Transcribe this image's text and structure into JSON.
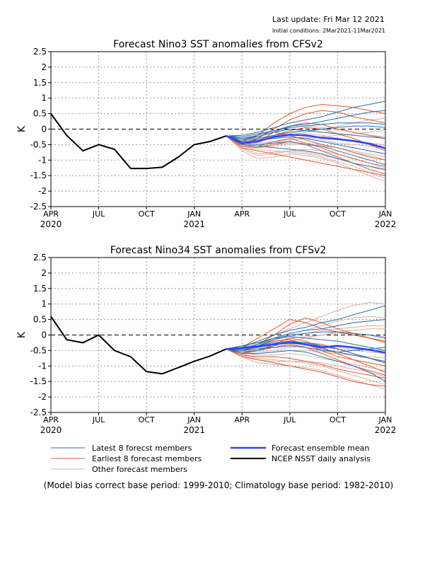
{
  "header": {
    "last_update": "Last update: Fri Mar 12 2021",
    "initial_conditions": "Initial conditions: 2Mar2021-11Mar2021"
  },
  "colors": {
    "latest": "#1f6fb4",
    "earliest": "#e8542a",
    "other": "#d8b0a4",
    "mean": "#2a44ff",
    "observed": "#000000",
    "grid": "#9a9a9a"
  },
  "legend": {
    "latest": "Latest 8 forecst members",
    "earliest": "Earliest 8 forecast members",
    "other": "Other forecast members",
    "mean": "Forecast ensemble mean",
    "observed": "NCEP NSST daily analysis"
  },
  "footnote": "(Model bias correct base period: 1999-2010; Climatology base period: 1982-2010)",
  "chart_data": [
    {
      "type": "line",
      "title": "Forecast Nino3 SST anomalies from CFSv2",
      "ylabel": "K",
      "ylim": [
        -2.5,
        2.5
      ],
      "yticks": [
        "2.5",
        "2",
        "1.5",
        "1",
        "0.5",
        "0",
        "-0.5",
        "-1",
        "-1.5",
        "-2",
        "-2.5"
      ],
      "xticks": [
        "APR",
        "JUL",
        "OCT",
        "JAN",
        "APR",
        "JUL",
        "OCT",
        "JAN"
      ],
      "year_labels": [
        {
          "text": "2020",
          "at": 0
        },
        {
          "text": "2021",
          "at": 3
        },
        {
          "text": "2022",
          "at": 7
        }
      ],
      "grid": true,
      "zero_line": true,
      "observed": {
        "x": [
          0,
          0.33,
          0.67,
          1,
          1.33,
          1.67,
          2,
          2.33,
          2.67,
          3,
          3.33,
          3.67
        ],
        "y": [
          0.5,
          -0.2,
          -0.7,
          -0.5,
          -0.65,
          -1.27,
          -1.27,
          -1.23,
          -0.9,
          -0.5,
          -0.4,
          -0.22
        ]
      },
      "mean": {
        "x": [
          3.67,
          4,
          4.33,
          4.67,
          5,
          5.33,
          5.67,
          6,
          6.33,
          6.67,
          7
        ],
        "y": [
          -0.22,
          -0.45,
          -0.4,
          -0.25,
          -0.18,
          -0.2,
          -0.28,
          -0.32,
          -0.38,
          -0.47,
          -0.62
        ]
      },
      "latest": [
        [
          -0.22,
          -0.2,
          -0.1,
          0.05,
          0.2,
          0.3,
          0.4,
          0.55,
          0.7,
          0.8,
          0.9
        ],
        [
          -0.22,
          -0.25,
          -0.15,
          -0.05,
          0.1,
          0.15,
          0.25,
          0.35,
          0.45,
          0.55,
          0.6
        ],
        [
          -0.22,
          -0.3,
          -0.2,
          -0.05,
          0.05,
          0.1,
          0.15,
          0.2,
          0.2,
          0.2,
          0.15
        ],
        [
          -0.22,
          -0.35,
          -0.3,
          -0.2,
          -0.1,
          -0.05,
          0.0,
          0.05,
          0.1,
          0.1,
          0.05
        ],
        [
          -0.22,
          -0.4,
          -0.35,
          -0.3,
          -0.25,
          -0.3,
          -0.4,
          -0.5,
          -0.6,
          -0.7,
          -0.8
        ],
        [
          -0.22,
          -0.45,
          -0.5,
          -0.45,
          -0.4,
          -0.5,
          -0.55,
          -0.7,
          -0.85,
          -1.0,
          -1.15
        ],
        [
          -0.22,
          -0.5,
          -0.55,
          -0.6,
          -0.65,
          -0.7,
          -0.8,
          -0.95,
          -1.1,
          -1.2,
          -1.3
        ],
        [
          -0.22,
          -0.3,
          -0.25,
          -0.1,
          0.0,
          -0.05,
          -0.1,
          -0.15,
          -0.2,
          -0.25,
          -0.3
        ]
      ],
      "earliest": [
        [
          -0.22,
          -0.4,
          -0.2,
          0.2,
          0.5,
          0.7,
          0.8,
          0.75,
          0.7,
          0.6,
          0.5
        ],
        [
          -0.22,
          -0.5,
          -0.3,
          0.0,
          0.3,
          0.5,
          0.6,
          0.55,
          0.4,
          0.3,
          0.2
        ],
        [
          -0.22,
          -0.45,
          -0.4,
          -0.1,
          0.1,
          0.2,
          0.15,
          0.0,
          -0.1,
          -0.2,
          -0.3
        ],
        [
          -0.22,
          -0.55,
          -0.6,
          -0.5,
          -0.4,
          -0.5,
          -0.7,
          -0.9,
          -1.1,
          -1.3,
          -1.45
        ],
        [
          -0.22,
          -0.6,
          -0.7,
          -0.8,
          -0.9,
          -1.0,
          -1.1,
          -1.2,
          -1.3,
          -1.4,
          -1.5
        ],
        [
          -0.22,
          -0.5,
          -0.55,
          -0.4,
          -0.3,
          -0.45,
          -0.6,
          -0.8,
          -0.95,
          -1.1,
          -1.2
        ],
        [
          -0.22,
          -0.35,
          -0.25,
          -0.1,
          -0.2,
          -0.35,
          -0.5,
          -0.6,
          -0.75,
          -0.9,
          -1.0
        ],
        [
          -0.22,
          -0.45,
          -0.35,
          -0.2,
          -0.05,
          0.05,
          0.0,
          -0.15,
          -0.3,
          -0.5,
          -0.7
        ]
      ],
      "other": [
        [
          -0.22,
          -0.3,
          -0.35,
          -0.3,
          -0.2,
          -0.1,
          0.0,
          0.1,
          0.2,
          0.3,
          0.35
        ],
        [
          -0.22,
          -0.4,
          -0.45,
          -0.4,
          -0.35,
          -0.3,
          -0.25,
          -0.2,
          -0.15,
          -0.1,
          -0.05
        ],
        [
          -0.22,
          -0.5,
          -0.6,
          -0.55,
          -0.5,
          -0.5,
          -0.55,
          -0.6,
          -0.7,
          -0.8,
          -0.9
        ],
        [
          -0.22,
          -0.6,
          -0.8,
          -0.75,
          -0.7,
          -0.75,
          -0.85,
          -0.95,
          -1.1,
          -1.2,
          -1.35
        ],
        [
          -0.22,
          -0.7,
          -0.95,
          -0.9,
          -0.8,
          -0.85,
          -0.95,
          -1.1,
          -1.3,
          -1.5,
          -1.7
        ],
        [
          -0.22,
          -0.45,
          -0.5,
          -0.45,
          -0.3,
          -0.25,
          -0.35,
          -0.45,
          -0.5,
          -0.55,
          -0.6
        ],
        [
          -0.22,
          -0.35,
          -0.3,
          -0.2,
          -0.15,
          -0.2,
          -0.3,
          -0.35,
          -0.4,
          -0.45,
          -0.5
        ],
        [
          -0.22,
          -0.55,
          -0.65,
          -0.7,
          -0.75,
          -0.8,
          -0.9,
          -1.05,
          -1.2,
          -1.4,
          -1.6
        ],
        [
          -0.22,
          -0.4,
          -0.35,
          -0.2,
          -0.1,
          -0.15,
          -0.2,
          -0.3,
          -0.4,
          -0.5,
          -0.55
        ],
        [
          -0.22,
          -0.5,
          -0.55,
          -0.5,
          -0.45,
          -0.45,
          -0.5,
          -0.6,
          -0.75,
          -0.85,
          -1.0
        ],
        [
          -0.22,
          -0.65,
          -0.85,
          -0.8,
          -0.7,
          -0.65,
          -0.7,
          -0.8,
          -0.95,
          -1.1,
          -1.25
        ],
        [
          -0.22,
          -0.3,
          -0.2,
          -0.05,
          0.05,
          0.1,
          0.05,
          0.0,
          -0.1,
          -0.2,
          -0.25
        ]
      ]
    },
    {
      "type": "line",
      "title": "Forecast Nino34 SST anomalies from CFSv2",
      "ylabel": "K",
      "ylim": [
        -2.5,
        2.5
      ],
      "yticks": [
        "2.5",
        "2",
        "1.5",
        "1",
        "0.5",
        "0",
        "-0.5",
        "-1",
        "-1.5",
        "-2",
        "-2.5"
      ],
      "xticks": [
        "APR",
        "JUL",
        "OCT",
        "JAN",
        "APR",
        "JUL",
        "OCT",
        "JAN"
      ],
      "year_labels": [
        {
          "text": "2020",
          "at": 0
        },
        {
          "text": "2021",
          "at": 3
        },
        {
          "text": "2022",
          "at": 7
        }
      ],
      "grid": true,
      "zero_line": true,
      "observed": {
        "x": [
          0,
          0.33,
          0.67,
          1,
          1.33,
          1.67,
          2,
          2.33,
          2.67,
          3,
          3.33,
          3.67
        ],
        "y": [
          0.6,
          -0.15,
          -0.25,
          0.0,
          -0.5,
          -0.7,
          -1.18,
          -1.25,
          -1.05,
          -0.85,
          -0.68,
          -0.45
        ]
      },
      "mean": {
        "x": [
          3.67,
          4,
          4.33,
          4.67,
          5,
          5.33,
          5.67,
          6,
          6.33,
          6.67,
          7
        ],
        "y": [
          -0.45,
          -0.42,
          -0.38,
          -0.3,
          -0.25,
          -0.3,
          -0.4,
          -0.35,
          -0.4,
          -0.48,
          -0.57
        ]
      },
      "latest": [
        [
          -0.45,
          -0.4,
          -0.2,
          0.0,
          0.15,
          0.25,
          0.4,
          0.5,
          0.65,
          0.8,
          0.95
        ],
        [
          -0.45,
          -0.45,
          -0.3,
          -0.1,
          0.05,
          0.15,
          0.2,
          0.3,
          0.4,
          0.45,
          0.5
        ],
        [
          -0.45,
          -0.5,
          -0.35,
          -0.15,
          0.0,
          0.05,
          0.1,
          0.1,
          0.05,
          0.0,
          -0.1
        ],
        [
          -0.45,
          -0.55,
          -0.5,
          -0.35,
          -0.2,
          -0.25,
          -0.35,
          -0.45,
          -0.6,
          -0.75,
          -0.9
        ],
        [
          -0.45,
          -0.6,
          -0.6,
          -0.55,
          -0.5,
          -0.55,
          -0.7,
          -0.85,
          -1.0,
          -1.2,
          -1.5
        ],
        [
          -0.45,
          -0.4,
          -0.35,
          -0.25,
          -0.2,
          -0.3,
          -0.45,
          -0.55,
          -0.65,
          -0.75,
          -0.85
        ],
        [
          -0.45,
          -0.5,
          -0.45,
          -0.4,
          -0.35,
          -0.4,
          -0.5,
          -0.55,
          -0.5,
          -0.45,
          -0.4
        ],
        [
          -0.45,
          -0.35,
          -0.25,
          -0.1,
          -0.05,
          -0.1,
          -0.15,
          -0.2,
          -0.3,
          -0.4,
          -0.5
        ]
      ],
      "earliest": [
        [
          -0.45,
          -0.4,
          -0.1,
          0.2,
          0.5,
          0.4,
          0.2,
          0.1,
          0.0,
          -0.1,
          -0.2
        ],
        [
          -0.45,
          -0.5,
          -0.3,
          0.0,
          0.35,
          0.55,
          0.4,
          0.2,
          0.05,
          -0.1,
          -0.25
        ],
        [
          -0.45,
          -0.6,
          -0.5,
          -0.3,
          -0.1,
          -0.2,
          -0.4,
          -0.6,
          -0.8,
          -1.0,
          -1.2
        ],
        [
          -0.45,
          -0.65,
          -0.7,
          -0.7,
          -0.75,
          -0.85,
          -0.95,
          -1.1,
          -1.2,
          -1.3,
          -1.4
        ],
        [
          -0.45,
          -0.7,
          -0.8,
          -0.9,
          -1.0,
          -1.1,
          -1.2,
          -1.35,
          -1.5,
          -1.6,
          -1.65
        ],
        [
          -0.45,
          -0.55,
          -0.5,
          -0.4,
          -0.3,
          -0.4,
          -0.6,
          -0.8,
          -1.0,
          -1.15,
          -1.3
        ],
        [
          -0.45,
          -0.45,
          -0.35,
          -0.2,
          -0.15,
          -0.3,
          -0.5,
          -0.7,
          -0.8,
          -0.9,
          -1.0
        ],
        [
          -0.45,
          -0.5,
          -0.4,
          -0.3,
          -0.2,
          -0.25,
          -0.3,
          -0.45,
          -0.6,
          -0.75,
          -0.9
        ]
      ],
      "other": [
        [
          -0.45,
          -0.35,
          -0.2,
          0.0,
          0.2,
          0.4,
          0.6,
          0.8,
          0.95,
          1.05,
          1.0
        ],
        [
          -0.45,
          -0.4,
          -0.3,
          -0.15,
          0.05,
          0.15,
          0.3,
          0.45,
          0.55,
          0.6,
          0.55
        ],
        [
          -0.45,
          -0.5,
          -0.45,
          -0.35,
          -0.2,
          -0.1,
          0.0,
          0.1,
          0.15,
          0.2,
          0.2
        ],
        [
          -0.45,
          -0.55,
          -0.6,
          -0.55,
          -0.5,
          -0.5,
          -0.55,
          -0.6,
          -0.65,
          -0.7,
          -0.75
        ],
        [
          -0.45,
          -0.6,
          -0.75,
          -0.8,
          -0.85,
          -0.9,
          -1.0,
          -1.15,
          -1.3,
          -1.45,
          -1.6
        ],
        [
          -0.45,
          -0.45,
          -0.4,
          -0.3,
          -0.25,
          -0.3,
          -0.4,
          -0.45,
          -0.5,
          -0.55,
          -0.6
        ],
        [
          -0.45,
          -0.7,
          -0.9,
          -0.95,
          -1.0,
          -1.05,
          -1.15,
          -1.3,
          -1.45,
          -1.6,
          -1.75
        ],
        [
          -0.45,
          -0.5,
          -0.55,
          -0.5,
          -0.4,
          -0.35,
          -0.35,
          -0.4,
          -0.45,
          -0.5,
          -0.5
        ],
        [
          -0.45,
          -0.4,
          -0.3,
          -0.2,
          -0.1,
          -0.05,
          0.0,
          0.05,
          0.05,
          0.0,
          -0.05
        ],
        [
          -0.45,
          -0.55,
          -0.65,
          -0.65,
          -0.6,
          -0.65,
          -0.75,
          -0.85,
          -0.95,
          -1.05,
          -1.15
        ],
        [
          -0.45,
          -0.65,
          -0.8,
          -0.85,
          -0.85,
          -0.85,
          -0.9,
          -1.0,
          -1.1,
          -1.2,
          -1.35
        ],
        [
          -0.45,
          -0.35,
          -0.25,
          -0.15,
          -0.05,
          0.05,
          0.15,
          0.2,
          0.25,
          0.3,
          0.3
        ]
      ]
    }
  ]
}
